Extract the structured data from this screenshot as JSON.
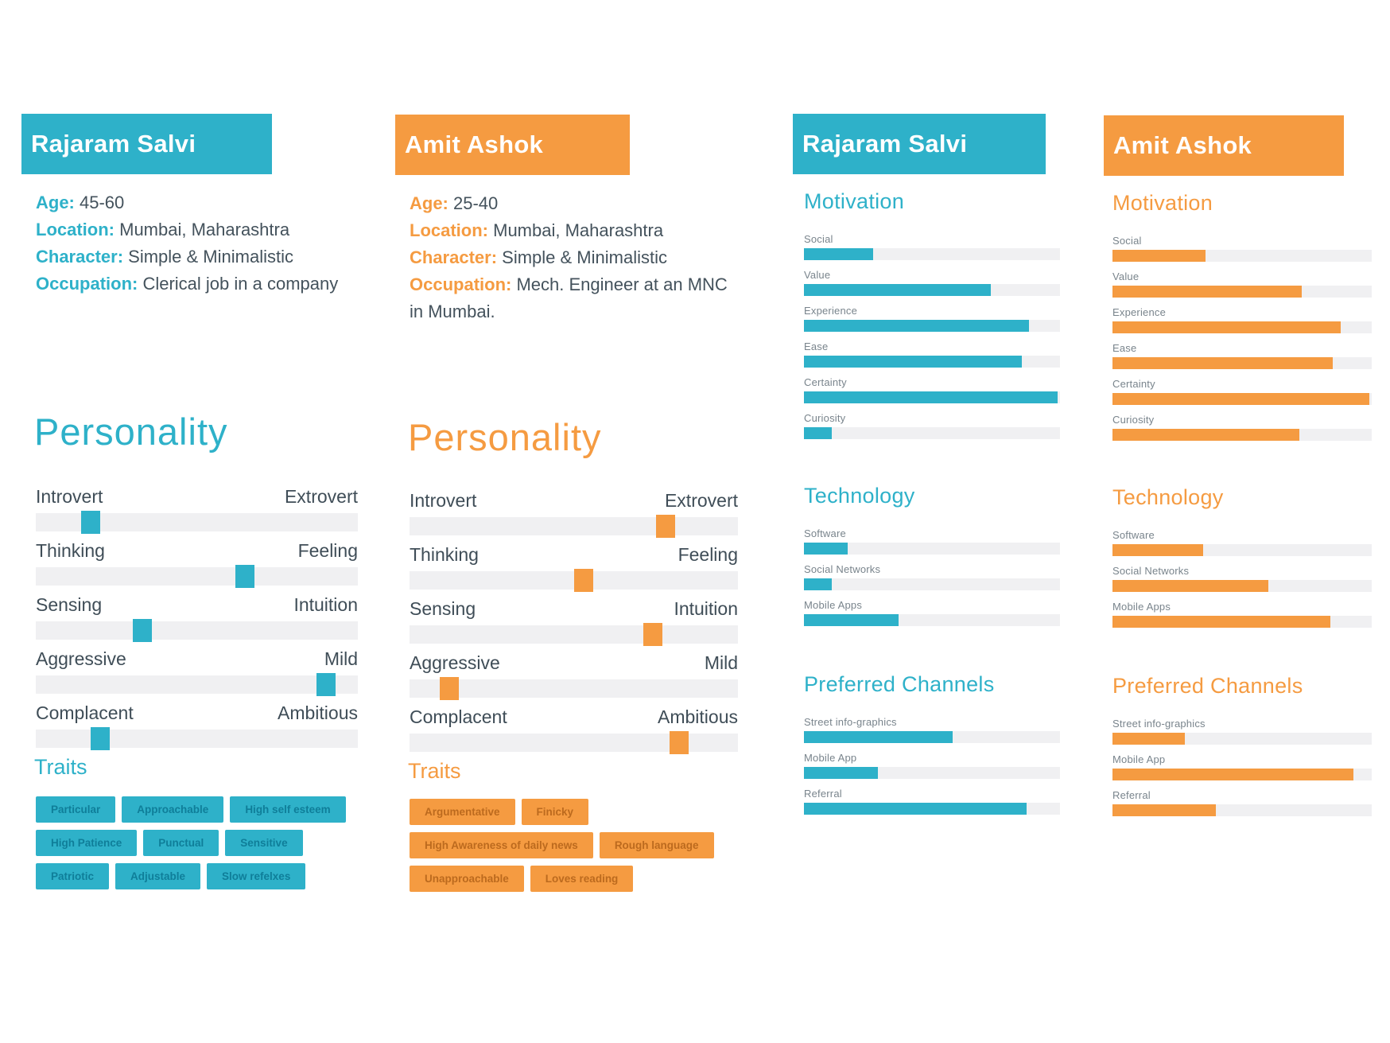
{
  "document": {
    "colors": {
      "teal": "#2eb1c9",
      "teal_dark": "#0f7e99",
      "orange": "#f59b41",
      "orange_dark": "#bc6a1e",
      "track": "#f0f0f2",
      "text_dark": "#3f4d57",
      "bar_label": "#79848c",
      "header_text": "#ffffff"
    },
    "profiles": [
      {
        "name": "Rajaram Salvi",
        "theme": "teal",
        "info": [
          {
            "label": "Age:",
            "value": "45-60"
          },
          {
            "label": "Location:",
            "value": "Mumbai, Maharashtra"
          },
          {
            "label": "Character:",
            "value": "Simple & Minimalistic"
          },
          {
            "label": "Occupation:",
            "value": "Clerical job in a company"
          }
        ],
        "personality_title": "Personality",
        "traits_title": "Traits",
        "sliders": [
          {
            "left": "Introvert",
            "right": "Extrovert",
            "pct": 17
          },
          {
            "left": "Thinking",
            "right": "Feeling",
            "pct": 65
          },
          {
            "left": "Sensing",
            "right": "Intuition",
            "pct": 33
          },
          {
            "left": "Aggressive",
            "right": "Mild",
            "pct": 90
          },
          {
            "left": "Complacent",
            "right": "Ambitious",
            "pct": 20
          }
        ],
        "traits": [
          "Particular",
          "Approachable",
          "High self esteem",
          "High Patience",
          "Punctual",
          "Sensitive",
          "Patriotic",
          "Adjustable",
          "Slow refelxes"
        ]
      },
      {
        "name": "Amit Ashok",
        "theme": "orange",
        "info": [
          {
            "label": "Age:",
            "value": "25-40"
          },
          {
            "label": "Location:",
            "value": "Mumbai, Maharashtra"
          },
          {
            "label": "Character:",
            "value": "Simple & Minimalistic"
          },
          {
            "label": "Occupation:",
            "value": "Mech. Engineer at an MNC in Mumbai."
          }
        ],
        "personality_title": "Personality",
        "traits_title": "Traits",
        "sliders": [
          {
            "left": "Introvert",
            "right": "Extrovert",
            "pct": 78
          },
          {
            "left": "Thinking",
            "right": "Feeling",
            "pct": 53
          },
          {
            "left": "Sensing",
            "right": "Intuition",
            "pct": 74
          },
          {
            "left": "Aggressive",
            "right": "Mild",
            "pct": 12
          },
          {
            "left": "Complacent",
            "right": "Ambitious",
            "pct": 82
          }
        ],
        "traits": [
          "Argumentative",
          "Finicky",
          "High Awareness of daily news",
          "Rough language",
          "Unapproachable",
          "Loves reading"
        ]
      }
    ],
    "stats": [
      {
        "name": "Rajaram Salvi",
        "theme": "teal",
        "sections": [
          {
            "title": "Motivation",
            "bars": [
              {
                "label": "Social",
                "pct": 27
              },
              {
                "label": "Value",
                "pct": 73
              },
              {
                "label": "Experience",
                "pct": 88
              },
              {
                "label": "Ease",
                "pct": 85
              },
              {
                "label": "Certainty",
                "pct": 99
              },
              {
                "label": "Curiosity",
                "pct": 11
              }
            ]
          },
          {
            "title": "Technology",
            "bars": [
              {
                "label": "Software",
                "pct": 17
              },
              {
                "label": "Social Networks",
                "pct": 11
              },
              {
                "label": "Mobile Apps",
                "pct": 37
              }
            ]
          },
          {
            "title": "Preferred Channels",
            "bars": [
              {
                "label": "Street info-graphics",
                "pct": 58
              },
              {
                "label": "Mobile App",
                "pct": 29
              },
              {
                "label": "Referral",
                "pct": 87
              }
            ]
          }
        ]
      },
      {
        "name": "Amit Ashok",
        "theme": "orange",
        "sections": [
          {
            "title": "Motivation",
            "bars": [
              {
                "label": "Social",
                "pct": 36
              },
              {
                "label": "Value",
                "pct": 73
              },
              {
                "label": "Experience",
                "pct": 88
              },
              {
                "label": "Ease",
                "pct": 85
              },
              {
                "label": "Certainty",
                "pct": 99
              },
              {
                "label": "Curiosity",
                "pct": 72
              }
            ]
          },
          {
            "title": "Technology",
            "bars": [
              {
                "label": "Software",
                "pct": 35
              },
              {
                "label": "Social Networks",
                "pct": 60
              },
              {
                "label": "Mobile Apps",
                "pct": 84
              }
            ]
          },
          {
            "title": "Preferred Channels",
            "bars": [
              {
                "label": "Street info-graphics",
                "pct": 28
              },
              {
                "label": "Mobile App",
                "pct": 93
              },
              {
                "label": "Referral",
                "pct": 40
              }
            ]
          }
        ]
      }
    ]
  }
}
